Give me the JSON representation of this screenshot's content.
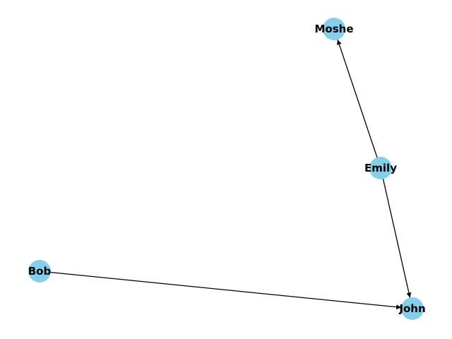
{
  "graph": {
    "directed": true,
    "node_color": "#87ceeb",
    "edge_color": "#000000",
    "nodes": [
      {
        "id": "moshe",
        "label": "Moshe"
      },
      {
        "id": "emily",
        "label": "Emily"
      },
      {
        "id": "bob",
        "label": "Bob"
      },
      {
        "id": "john",
        "label": "John"
      }
    ],
    "edges": [
      {
        "from": "emily",
        "to": "moshe"
      },
      {
        "from": "emily",
        "to": "john"
      },
      {
        "from": "bob",
        "to": "john"
      }
    ]
  }
}
